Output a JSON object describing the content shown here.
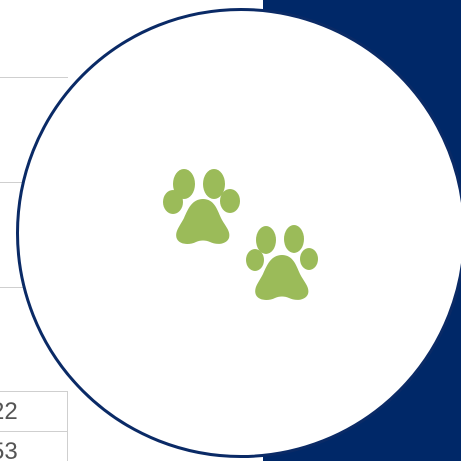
{
  "background": {
    "panel_color": "#002868",
    "circle_border_color": "#0a2a66"
  },
  "table": {
    "rows": [
      "22",
      "53"
    ]
  },
  "badge": {
    "icon": "paw-prints-icon",
    "icon_color": "#9bbb59"
  }
}
